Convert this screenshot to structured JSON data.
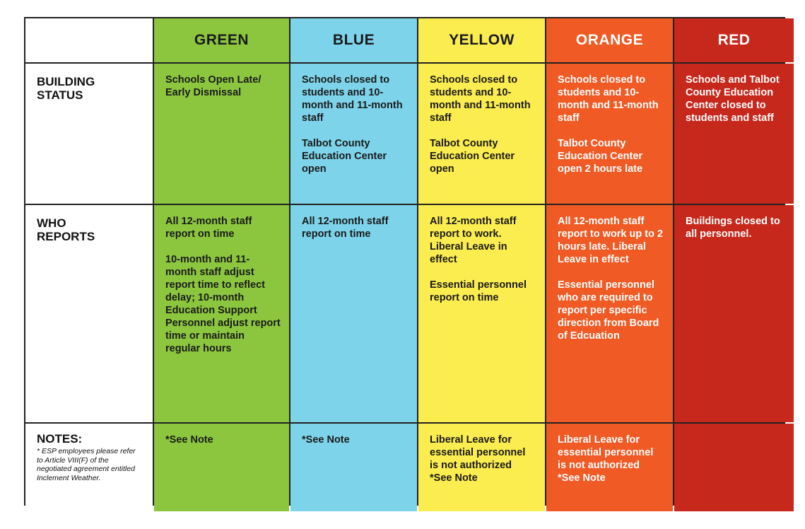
{
  "colors": {
    "green": "#8cc63f",
    "blue": "#7dd3ea",
    "yellow": "#fbec4f",
    "orange": "#f05a24",
    "red": "#c7281c"
  },
  "columns": [
    "GREEN",
    "BLUE",
    "YELLOW",
    "ORANGE",
    "RED"
  ],
  "rows": {
    "building_status": {
      "label_1": "BUILDING",
      "label_2": "STATUS",
      "green": [
        "Schools Open Late/ Early Dismissal"
      ],
      "blue": [
        "Schools closed to students and 10-month and 11-month staff",
        "Talbot County Education Center open"
      ],
      "yellow": [
        "Schools closed to students and 10-month and 11-month staff",
        "Talbot County Education Center open"
      ],
      "orange": [
        "Schools closed to students and 10-month and 11-month staff",
        "Talbot County Education Center open 2 hours late"
      ],
      "red": [
        "Schools and Talbot County Education Center closed to students and staff"
      ]
    },
    "who_reports": {
      "label_1": "WHO",
      "label_2": "REPORTS",
      "green": [
        "All 12-month staff report on time",
        "10-month and 11- month staff adjust report time to reflect delay; 10-month Education Support Personnel adjust report time or maintain regular hours"
      ],
      "blue": [
        "All 12-month staff report on time"
      ],
      "yellow": [
        "All 12-month staff report to work. Liberal Leave in effect",
        "Essential personnel report on time"
      ],
      "orange": [
        "All 12-month staff report to work up to 2 hours late. Liberal Leave in effect",
        "Essential personnel who are required to report per specific direction from Board of Edcuation"
      ],
      "red": [
        "Buildings closed to all personnel."
      ]
    },
    "notes": {
      "title": "NOTES:",
      "text": "* ESP employees please refer to Article VIII(F) of the negotiated agreement entitled Inclement Weather.",
      "green": "*See Note",
      "blue": "*See Note",
      "yellow_1": "Liberal Leave for essential personnel is not authorized",
      "yellow_2": "*See Note",
      "orange_1": "Liberal Leave for essential personnel is not authorized",
      "orange_2": "*See Note",
      "red": ""
    }
  }
}
